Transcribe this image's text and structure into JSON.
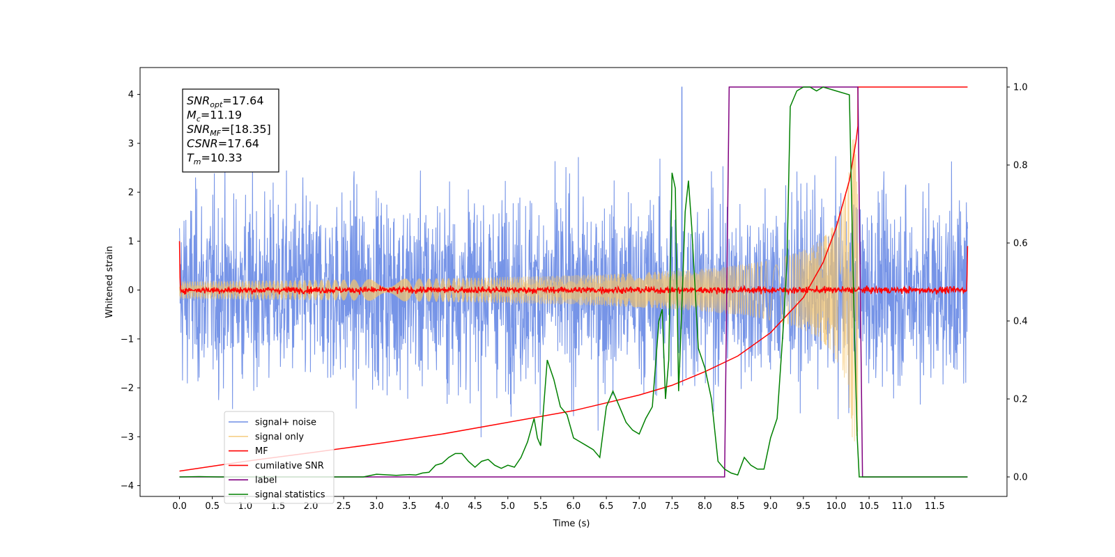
{
  "chart_data": {
    "type": "line",
    "xlabel": "Time (s)",
    "ylabel": "Whitened strain",
    "xlim": [
      -0.6,
      12.6
    ],
    "ylim_left": [
      -4.22,
      4.55
    ],
    "ylim_right": [
      -0.05,
      1.05
    ],
    "x_ticks": [
      "0.0",
      "0.5",
      "1.0",
      "1.5",
      "2.0",
      "2.5",
      "3.0",
      "3.5",
      "4.0",
      "4.5",
      "5.0",
      "5.5",
      "6.0",
      "6.5",
      "7.0",
      "7.5",
      "8.0",
      "8.5",
      "9.0",
      "9.5",
      "10.0",
      "10.5",
      "11.0",
      "11.5"
    ],
    "y_ticks_left": [
      "4",
      "3",
      "2",
      "1",
      "0",
      "−1",
      "−2",
      "−3",
      "−4"
    ],
    "y_ticks_right": [
      "1.0",
      "0.8",
      "0.6",
      "0.4",
      "0.2",
      "0.0"
    ],
    "stats_box": [
      {
        "base": "SNR",
        "sub": "opt",
        "rest": "=17.64"
      },
      {
        "base": "M",
        "sub": "c",
        "rest": "=11.19"
      },
      {
        "base": "SNR",
        "sub": "MF",
        "rest": "=[18.35]"
      },
      {
        "base": "CSNR",
        "sub": "",
        "rest": "=17.64"
      },
      {
        "base": "T",
        "sub": "m",
        "rest": "=10.33"
      }
    ],
    "legend_position": "lower-left",
    "series": [
      {
        "name": "signal+ noise",
        "color": "#6f8ee6",
        "axis": "left",
        "description_values": {
          "t_start": 0.0,
          "t_end": 12.0,
          "typical_range": [
            -2.6,
            2.6
          ],
          "max_spike": 4.15,
          "spike_time": 7.65
        }
      },
      {
        "name": "signal only",
        "color": "#f5c46a",
        "axis": "left",
        "description_values": {
          "chirp_end": 10.33,
          "peak_amplitude": 3.1
        }
      },
      {
        "name": "MF",
        "color": "#ff0000",
        "axis": "left",
        "description_values": {
          "baseline": 0.0,
          "noise_amplitude": 0.06,
          "edge_values": [
            1.0,
            0.9
          ]
        }
      },
      {
        "name": "cumilative SNR",
        "color": "#ff0000",
        "axis": "right",
        "x": [
          0.0,
          1.0,
          2.0,
          3.0,
          4.0,
          5.0,
          6.0,
          7.0,
          7.5,
          8.0,
          8.5,
          9.0,
          9.5,
          9.8,
          10.0,
          10.2,
          10.3,
          10.33,
          10.33,
          12.0
        ],
        "y": [
          0.015,
          0.04,
          0.062,
          0.085,
          0.11,
          0.14,
          0.17,
          0.21,
          0.235,
          0.27,
          0.31,
          0.37,
          0.46,
          0.55,
          0.64,
          0.76,
          0.86,
          0.9,
          1.0,
          1.0
        ]
      },
      {
        "name": "label",
        "color": "#800080",
        "axis": "right",
        "x": [
          0.0,
          8.3,
          8.37,
          10.33,
          10.4,
          12.0
        ],
        "y": [
          0.0,
          0.0,
          1.0,
          1.0,
          0.0,
          0.0
        ]
      },
      {
        "name": "signal statistics",
        "color": "#008000",
        "axis": "right",
        "x": [
          0.0,
          0.3,
          0.6,
          1.0,
          1.5,
          2.0,
          2.5,
          2.8,
          3.0,
          3.3,
          3.5,
          3.6,
          3.7,
          3.8,
          3.9,
          4.0,
          4.1,
          4.2,
          4.3,
          4.4,
          4.5,
          4.6,
          4.7,
          4.8,
          4.9,
          5.0,
          5.1,
          5.2,
          5.3,
          5.4,
          5.45,
          5.5,
          5.6,
          5.7,
          5.8,
          5.9,
          6.0,
          6.1,
          6.2,
          6.3,
          6.4,
          6.5,
          6.6,
          6.7,
          6.8,
          6.9,
          7.0,
          7.1,
          7.2,
          7.3,
          7.35,
          7.4,
          7.45,
          7.5,
          7.55,
          7.6,
          7.65,
          7.7,
          7.75,
          7.8,
          7.9,
          8.0,
          8.1,
          8.2,
          8.3,
          8.4,
          8.5,
          8.6,
          8.7,
          8.8,
          8.9,
          9.0,
          9.1,
          9.2,
          9.25,
          9.3,
          9.4,
          9.5,
          9.6,
          9.7,
          9.8,
          10.0,
          10.2,
          10.28,
          10.32,
          10.35,
          10.4,
          10.5,
          11.0,
          11.5,
          12.0
        ],
        "y": [
          0.0,
          0.001,
          0.0,
          0.0,
          0.0,
          0.0,
          0.0,
          0.0,
          0.007,
          0.004,
          0.006,
          0.005,
          0.01,
          0.012,
          0.03,
          0.035,
          0.05,
          0.06,
          0.06,
          0.04,
          0.025,
          0.04,
          0.045,
          0.03,
          0.022,
          0.03,
          0.025,
          0.05,
          0.09,
          0.15,
          0.1,
          0.08,
          0.3,
          0.25,
          0.18,
          0.16,
          0.1,
          0.09,
          0.08,
          0.07,
          0.05,
          0.18,
          0.22,
          0.18,
          0.14,
          0.12,
          0.11,
          0.15,
          0.18,
          0.4,
          0.43,
          0.2,
          0.3,
          0.78,
          0.74,
          0.22,
          0.44,
          0.68,
          0.76,
          0.64,
          0.33,
          0.28,
          0.2,
          0.04,
          0.02,
          0.01,
          0.005,
          0.05,
          0.03,
          0.02,
          0.02,
          0.1,
          0.15,
          0.4,
          0.55,
          0.95,
          0.99,
          1.0,
          1.0,
          0.99,
          1.0,
          0.99,
          0.98,
          0.35,
          0.1,
          0.0,
          0.0,
          0.0,
          0.0,
          0.0,
          0.0
        ]
      }
    ]
  }
}
